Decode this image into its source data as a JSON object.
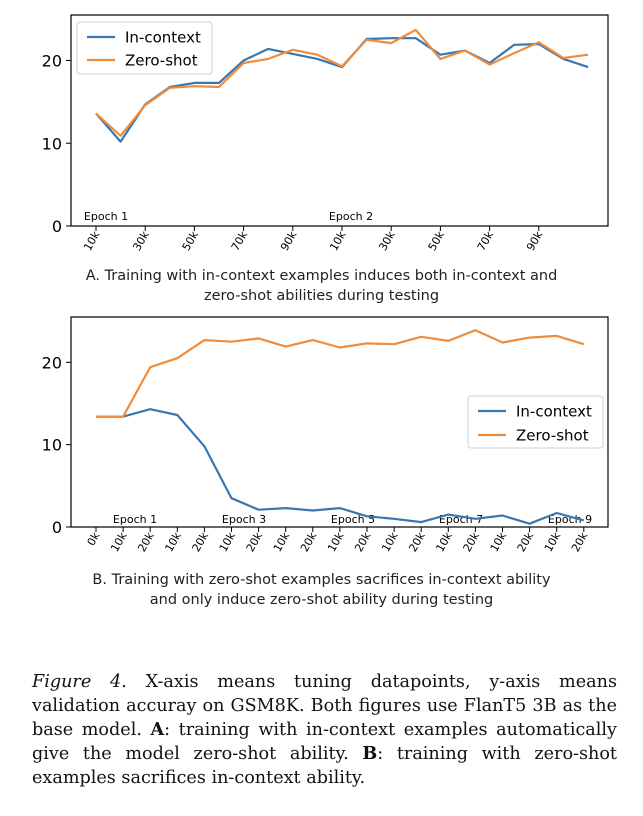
{
  "chart_data": [
    {
      "type": "line",
      "xlabels": [
        "10k",
        "30k",
        "50k",
        "70k",
        "90k",
        "10k",
        "30k",
        "50k",
        "70k",
        "90k"
      ],
      "ylim": [
        0,
        25.5
      ],
      "yticks": [
        0,
        10,
        20
      ],
      "grid": false,
      "legend_position": "top-left",
      "epoch_labels": [
        "Epoch 1",
        "Epoch 2"
      ],
      "series": [
        {
          "name": "In-context",
          "color": "#3a76b0",
          "values": [
            13.6,
            10.2,
            14.7,
            16.8,
            17.3,
            17.3,
            20.0,
            21.4,
            20.8,
            20.2,
            19.2,
            22.6,
            22.7,
            22.7,
            20.7,
            21.2,
            19.7,
            21.9,
            22.0,
            20.2,
            19.2
          ]
        },
        {
          "name": "Zero-shot",
          "color": "#f08c3a",
          "values": [
            13.6,
            10.9,
            14.6,
            16.7,
            16.9,
            16.8,
            19.7,
            20.2,
            21.3,
            20.7,
            19.3,
            22.5,
            22.1,
            23.7,
            20.2,
            21.2,
            19.5,
            20.9,
            22.2,
            20.3,
            20.7
          ]
        }
      ]
    },
    {
      "type": "line",
      "xlabels": [
        "0k",
        "10k",
        "20k",
        "10k",
        "20k",
        "10k",
        "20k",
        "10k",
        "20k",
        "10k",
        "20k",
        "10k",
        "20k",
        "10k",
        "20k",
        "10k",
        "20k",
        "10k",
        "20k"
      ],
      "ylim": [
        0,
        25.5
      ],
      "yticks": [
        0,
        10,
        20
      ],
      "grid": false,
      "legend_position": "center-right",
      "epoch_labels": [
        "Epoch 1",
        "Epoch 3",
        "Epoch 5",
        "Epoch 7",
        "Epoch 9"
      ],
      "series": [
        {
          "name": "In-context",
          "color": "#3a76b0",
          "values": [
            13.4,
            13.4,
            14.3,
            13.6,
            9.8,
            3.5,
            2.1,
            2.3,
            2.0,
            2.3,
            1.3,
            1.0,
            0.6,
            1.5,
            1.0,
            1.4,
            0.4,
            1.7,
            0.8
          ]
        },
        {
          "name": "Zero-shot",
          "color": "#f08c3a",
          "values": [
            13.4,
            13.4,
            19.4,
            20.5,
            22.7,
            22.5,
            22.9,
            21.9,
            22.7,
            21.8,
            22.3,
            22.2,
            23.1,
            22.6,
            23.9,
            22.4,
            23.0,
            23.2,
            22.2
          ]
        }
      ]
    }
  ],
  "captions": {
    "a_line1": "A. Training with in-context examples induces both in-context and",
    "a_line2": "zero-shot abilities during testing",
    "b_line1": "B. Training with zero-shot examples sacrifices in-context ability",
    "b_line2": "and only induce zero-shot ability during testing"
  },
  "figure_caption": {
    "label": "Figure 4.",
    "text1": " X-axis means tuning datapoints, y-axis means validation accuray on GSM8K. Both figures use FlanT5 3B as the base model. ",
    "a_label": "A",
    "text2": ": training with in-context examples automatically give the model zero-shot ability. ",
    "b_label": "B",
    "text3": ": training with zero-shot examples sacrifices in-context ability."
  }
}
